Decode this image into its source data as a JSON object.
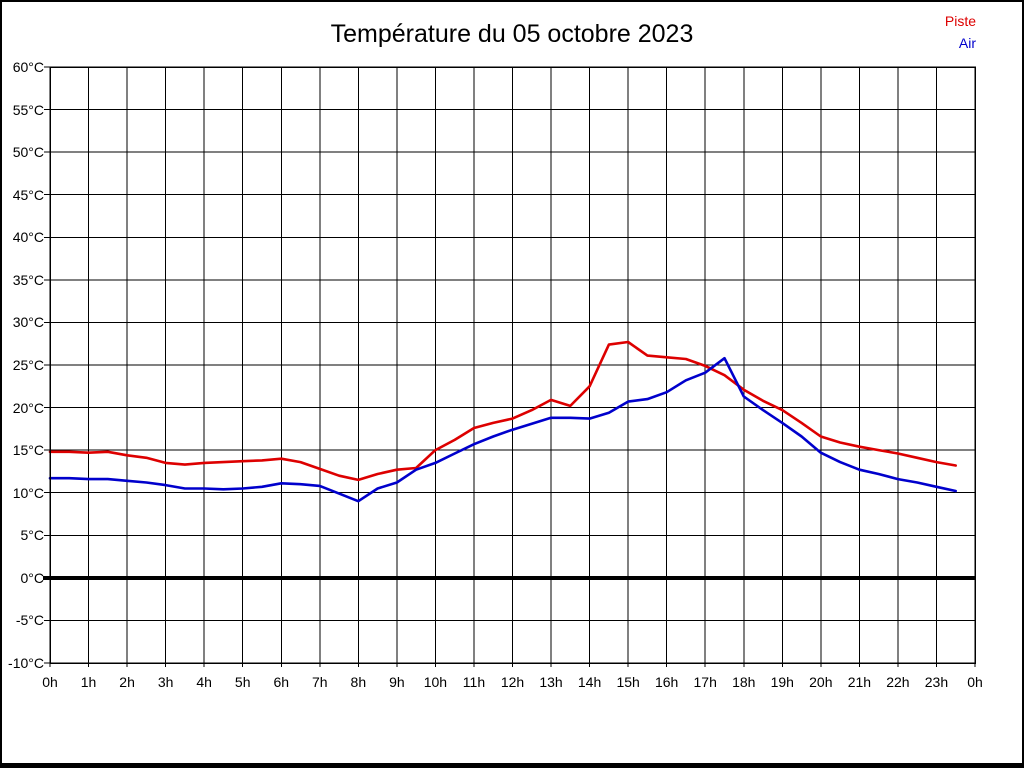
{
  "page": {
    "background": "#ffffff",
    "frame_color": "#000000"
  },
  "header": {
    "title": "Température du 05 octobre 2023"
  },
  "legend": {
    "items": [
      {
        "label": "Piste",
        "color": "#dd0000"
      },
      {
        "label": "Air",
        "color": "#0000cc"
      }
    ]
  },
  "chart_data": {
    "type": "line",
    "title": "Température du 05 octobre 2023",
    "xlabel": "",
    "ylabel": "",
    "x_unit": "hours",
    "y_unit": "°C",
    "xlim": [
      0,
      24
    ],
    "ylim": [
      -10,
      60
    ],
    "y_tick_step": 5,
    "grid": true,
    "zero_line": true,
    "legend_position": "top-right",
    "grid_color": "#000000",
    "x": [
      0,
      0.5,
      1,
      1.5,
      2,
      2.5,
      3,
      3.5,
      4,
      4.5,
      5,
      5.5,
      6,
      6.5,
      7,
      7.5,
      8,
      8.5,
      9,
      9.5,
      10,
      10.5,
      11,
      11.5,
      12,
      12.5,
      13,
      13.5,
      14,
      14.5,
      15,
      15.5,
      16,
      16.5,
      17,
      17.5,
      18,
      18.5,
      19,
      19.5,
      20,
      20.5,
      21,
      21.5,
      22,
      22.5,
      23,
      23.5
    ],
    "series": [
      {
        "name": "Piste",
        "color": "#dd0000",
        "values": [
          14.8,
          14.8,
          14.7,
          14.8,
          14.4,
          14.1,
          13.5,
          13.3,
          13.5,
          13.6,
          13.7,
          13.8,
          14.0,
          13.6,
          12.8,
          12.0,
          11.5,
          12.2,
          12.7,
          12.9,
          15.0,
          16.2,
          17.6,
          18.2,
          18.7,
          19.7,
          20.9,
          20.2,
          22.5,
          27.4,
          27.7,
          26.1,
          25.9,
          25.7,
          24.9,
          23.8,
          22.1,
          20.8,
          19.7,
          18.2,
          16.6,
          15.9,
          15.4,
          15.0,
          14.6,
          14.1,
          13.6,
          13.2
        ]
      },
      {
        "name": "Air",
        "color": "#0000cc",
        "values": [
          11.7,
          11.7,
          11.6,
          11.6,
          11.4,
          11.2,
          10.9,
          10.5,
          10.5,
          10.4,
          10.5,
          10.7,
          11.1,
          11.0,
          10.8,
          9.9,
          9.0,
          10.5,
          11.2,
          12.7,
          13.5,
          14.6,
          15.7,
          16.6,
          17.4,
          18.1,
          18.8,
          18.8,
          18.7,
          19.4,
          20.7,
          21.0,
          21.8,
          23.2,
          24.1,
          25.8,
          21.3,
          19.7,
          18.2,
          16.6,
          14.7,
          13.6,
          12.7,
          12.2,
          11.6,
          11.2,
          10.7,
          10.2
        ]
      }
    ],
    "x_tick_labels": [
      "0h",
      "1h",
      "2h",
      "3h",
      "4h",
      "5h",
      "6h",
      "7h",
      "8h",
      "9h",
      "10h",
      "11h",
      "12h",
      "13h",
      "14h",
      "15h",
      "16h",
      "17h",
      "18h",
      "19h",
      "20h",
      "21h",
      "22h",
      "23h",
      "0h"
    ],
    "y_tick_labels": [
      "60°C",
      "55°C",
      "50°C",
      "45°C",
      "40°C",
      "35°C",
      "30°C",
      "25°C",
      "20°C",
      "15°C",
      "10°C",
      "5°C",
      "0°C",
      "-5°C",
      "-10°C"
    ]
  }
}
